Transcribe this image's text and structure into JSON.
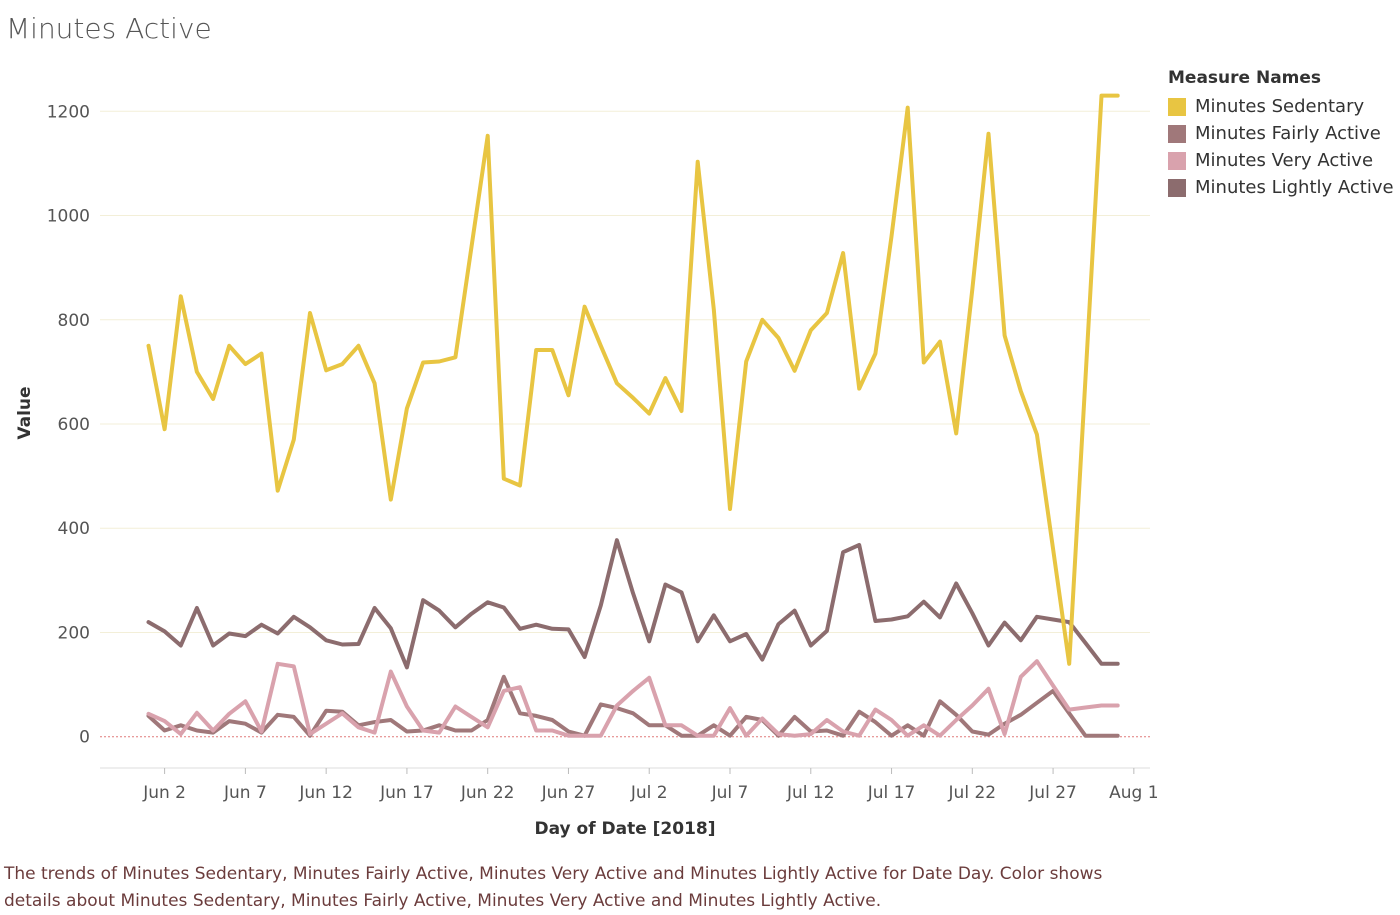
{
  "title": "Minutes Active",
  "legend": {
    "title": "Measure Names",
    "items": [
      {
        "label": "Minutes Sedentary",
        "color": "#e8c542"
      },
      {
        "label": "Minutes Fairly Active",
        "color": "#a0787a"
      },
      {
        "label": "Minutes Very Active",
        "color": "#d9a2ad"
      },
      {
        "label": "Minutes Lightly Active",
        "color": "#8c6c6e"
      }
    ]
  },
  "caption": "The trends of Minutes Sedentary, Minutes Fairly Active, Minutes Very Active and Minutes Lightly Active for Date Day.  Color shows details about Minutes Sedentary, Minutes Fairly Active, Minutes Very Active and Minutes Lightly Active.",
  "chart_data": {
    "type": "line",
    "xlabel": "Day of Date [2018]",
    "ylabel": "Value",
    "ylim": [
      -60,
      1260
    ],
    "xlim": [
      "2018-05-29",
      "2018-08-02"
    ],
    "yticks": [
      0,
      200,
      400,
      600,
      800,
      1000,
      1200
    ],
    "xticks": [
      {
        "label": "Jun 2",
        "date": "2018-06-02"
      },
      {
        "label": "Jun 7",
        "date": "2018-06-07"
      },
      {
        "label": "Jun 12",
        "date": "2018-06-12"
      },
      {
        "label": "Jun 17",
        "date": "2018-06-17"
      },
      {
        "label": "Jun 22",
        "date": "2018-06-22"
      },
      {
        "label": "Jun 27",
        "date": "2018-06-27"
      },
      {
        "label": "Jul 2",
        "date": "2018-07-02"
      },
      {
        "label": "Jul 7",
        "date": "2018-07-07"
      },
      {
        "label": "Jul 12",
        "date": "2018-07-12"
      },
      {
        "label": "Jul 17",
        "date": "2018-07-17"
      },
      {
        "label": "Jul 22",
        "date": "2018-07-22"
      },
      {
        "label": "Jul 27",
        "date": "2018-07-27"
      },
      {
        "label": "Aug 1",
        "date": "2018-08-01"
      }
    ],
    "grid": true,
    "legend_position": "right",
    "x": [
      "2018-06-01",
      "2018-06-02",
      "2018-06-03",
      "2018-06-04",
      "2018-06-05",
      "2018-06-06",
      "2018-06-07",
      "2018-06-08",
      "2018-06-09",
      "2018-06-10",
      "2018-06-11",
      "2018-06-12",
      "2018-06-13",
      "2018-06-14",
      "2018-06-15",
      "2018-06-16",
      "2018-06-17",
      "2018-06-18",
      "2018-06-19",
      "2018-06-20",
      "2018-06-21",
      "2018-06-22",
      "2018-06-23",
      "2018-06-24",
      "2018-06-25",
      "2018-06-26",
      "2018-06-27",
      "2018-06-28",
      "2018-06-29",
      "2018-06-30",
      "2018-07-01",
      "2018-07-02",
      "2018-07-03",
      "2018-07-04",
      "2018-07-05",
      "2018-07-06",
      "2018-07-07",
      "2018-07-08",
      "2018-07-09",
      "2018-07-10",
      "2018-07-11",
      "2018-07-12",
      "2018-07-13",
      "2018-07-14",
      "2018-07-15",
      "2018-07-16",
      "2018-07-17",
      "2018-07-18",
      "2018-07-19",
      "2018-07-20",
      "2018-07-21",
      "2018-07-22",
      "2018-07-23",
      "2018-07-24",
      "2018-07-25",
      "2018-07-26",
      "2018-07-27",
      "2018-07-28",
      "2018-07-29",
      "2018-07-30",
      "2018-07-31"
    ],
    "series": [
      {
        "name": "Minutes Sedentary",
        "color": "#e8c542",
        "values": [
          750,
          590,
          845,
          700,
          648,
          750,
          715,
          735,
          472,
          570,
          813,
          703,
          715,
          750,
          678,
          455,
          630,
          718,
          720,
          728,
          940,
          1153,
          495,
          482,
          742,
          742,
          655,
          825,
          750,
          678,
          650,
          620,
          688,
          625,
          1103,
          820,
          437,
          720,
          800,
          765,
          702,
          780,
          813,
          928,
          668,
          735,
          960,
          1207,
          718,
          758,
          582,
          858,
          1157,
          770,
          663,
          580,
          360,
          140,
          685,
          1230,
          1230
        ]
      },
      {
        "name": "Minutes Fairly Active",
        "color": "#a0787a",
        "values": [
          40,
          12,
          22,
          12,
          8,
          30,
          25,
          8,
          42,
          38,
          2,
          50,
          48,
          22,
          28,
          32,
          10,
          12,
          22,
          12,
          12,
          32,
          115,
          45,
          40,
          32,
          10,
          2,
          62,
          55,
          45,
          22,
          22,
          2,
          2,
          22,
          2,
          38,
          32,
          2,
          38,
          10,
          12,
          2,
          48,
          28,
          2,
          22,
          2,
          68,
          42,
          10,
          4,
          25,
          42,
          65,
          88,
          45,
          2,
          2,
          2
        ]
      },
      {
        "name": "Minutes Very Active",
        "color": "#d9a2ad",
        "values": [
          44,
          30,
          5,
          46,
          12,
          44,
          68,
          10,
          140,
          135,
          5,
          25,
          45,
          18,
          8,
          125,
          58,
          12,
          8,
          58,
          38,
          18,
          88,
          95,
          12,
          12,
          2,
          2,
          2,
          60,
          88,
          113,
          22,
          22,
          2,
          2,
          55,
          2,
          35,
          5,
          2,
          5,
          32,
          10,
          2,
          52,
          32,
          2,
          22,
          2,
          32,
          60,
          92,
          5,
          115,
          145,
          98,
          52,
          56,
          60,
          60
        ]
      },
      {
        "name": "Minutes Lightly Active",
        "color": "#8c6c6e",
        "values": [
          220,
          202,
          175,
          247,
          175,
          198,
          193,
          215,
          198,
          230,
          210,
          185,
          177,
          178,
          247,
          208,
          133,
          262,
          242,
          210,
          236,
          258,
          248,
          207,
          215,
          207,
          206,
          153,
          252,
          377,
          275,
          183,
          292,
          277,
          183,
          233,
          183,
          197,
          148,
          216,
          242,
          175,
          203,
          354,
          368,
          222,
          225,
          231,
          259,
          229,
          294,
          237,
          175,
          219,
          185,
          230,
          225,
          220,
          180,
          140,
          140
        ]
      }
    ]
  }
}
